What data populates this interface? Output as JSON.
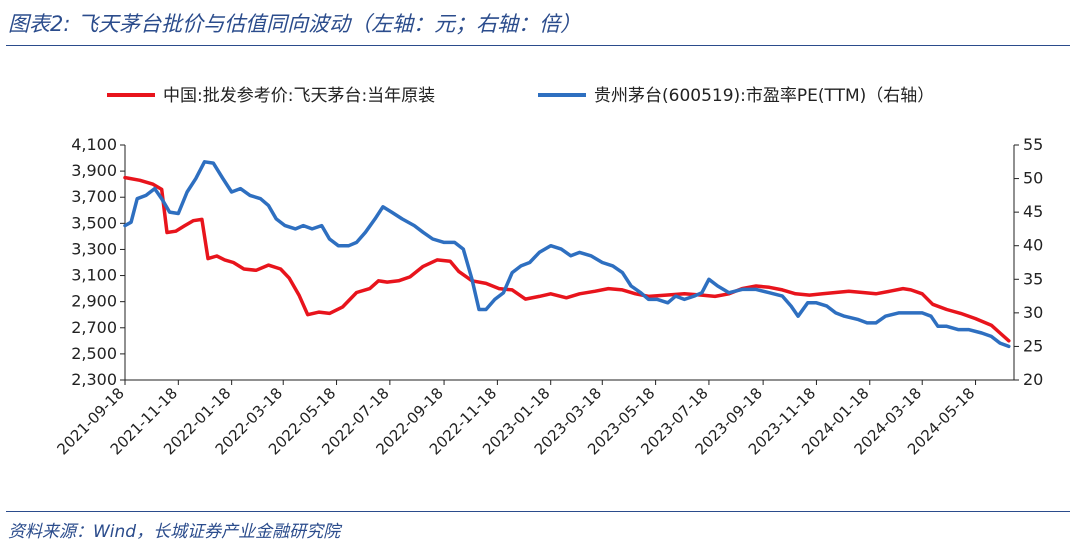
{
  "figure_title": "图表2:  飞天茅台批价与估值同向波动（左轴：元；右轴：倍）",
  "source_note": "资料来源：Wind，长城证券产业金融研究院",
  "colors": {
    "red_series": "#e8141c",
    "blue_series": "#2e6fc0",
    "title": "#2b4c8c",
    "axis": "#222222"
  },
  "chart_data": {
    "type": "line",
    "title": "",
    "legend_placement": "top",
    "grid": false,
    "x_tick_labels": [
      "2021-09-18",
      "2021-11-18",
      "2022-01-18",
      "2022-03-18",
      "2022-05-18",
      "2022-07-18",
      "2022-09-18",
      "2022-11-18",
      "2023-01-18",
      "2023-03-18",
      "2023-05-18",
      "2023-07-18",
      "2023-09-18",
      "2023-11-18",
      "2024-01-18",
      "2024-03-18",
      "2024-05-18"
    ],
    "x_range": [
      "2021-09-18",
      "2024-07-01"
    ],
    "y_left": {
      "range": [
        2300,
        4100
      ],
      "ticks": [
        "2,300",
        "2,500",
        "2,700",
        "2,900",
        "3,100",
        "3,300",
        "3,500",
        "3,700",
        "3,900",
        "4,100"
      ]
    },
    "y_right": {
      "range": [
        20,
        55
      ],
      "ticks": [
        "20",
        "25",
        "30",
        "35",
        "40",
        "45",
        "50",
        "55"
      ]
    },
    "series": [
      {
        "name": "中国:批发参考价:飞天茅台:当年原装",
        "axis": "left",
        "points": [
          [
            "2021-09-18",
            3850
          ],
          [
            "2021-10-05",
            3830
          ],
          [
            "2021-10-20",
            3800
          ],
          [
            "2021-10-30",
            3760
          ],
          [
            "2021-11-05",
            3430
          ],
          [
            "2021-11-15",
            3440
          ],
          [
            "2021-11-25",
            3480
          ],
          [
            "2021-12-05",
            3520
          ],
          [
            "2021-12-15",
            3530
          ],
          [
            "2021-12-22",
            3230
          ],
          [
            "2022-01-01",
            3250
          ],
          [
            "2022-01-10",
            3220
          ],
          [
            "2022-01-20",
            3200
          ],
          [
            "2022-02-01",
            3150
          ],
          [
            "2022-02-15",
            3140
          ],
          [
            "2022-03-01",
            3180
          ],
          [
            "2022-03-15",
            3150
          ],
          [
            "2022-03-25",
            3080
          ],
          [
            "2022-04-05",
            2950
          ],
          [
            "2022-04-15",
            2800
          ],
          [
            "2022-04-28",
            2820
          ],
          [
            "2022-05-10",
            2810
          ],
          [
            "2022-05-25",
            2860
          ],
          [
            "2022-06-10",
            2970
          ],
          [
            "2022-06-25",
            3000
          ],
          [
            "2022-07-05",
            3060
          ],
          [
            "2022-07-15",
            3050
          ],
          [
            "2022-07-28",
            3060
          ],
          [
            "2022-08-10",
            3090
          ],
          [
            "2022-08-25",
            3170
          ],
          [
            "2022-09-10",
            3220
          ],
          [
            "2022-09-25",
            3210
          ],
          [
            "2022-10-05",
            3130
          ],
          [
            "2022-10-20",
            3060
          ],
          [
            "2022-11-05",
            3040
          ],
          [
            "2022-11-20",
            3000
          ],
          [
            "2022-12-05",
            2990
          ],
          [
            "2022-12-20",
            2920
          ],
          [
            "2023-01-05",
            2940
          ],
          [
            "2023-01-18",
            2960
          ],
          [
            "2023-02-05",
            2930
          ],
          [
            "2023-02-20",
            2960
          ],
          [
            "2023-03-10",
            2980
          ],
          [
            "2023-03-25",
            3000
          ],
          [
            "2023-04-10",
            2990
          ],
          [
            "2023-04-25",
            2960
          ],
          [
            "2023-05-10",
            2940
          ],
          [
            "2023-05-30",
            2950
          ],
          [
            "2023-06-20",
            2960
          ],
          [
            "2023-07-10",
            2950
          ],
          [
            "2023-07-25",
            2940
          ],
          [
            "2023-08-10",
            2960
          ],
          [
            "2023-08-25",
            3000
          ],
          [
            "2023-09-10",
            3020
          ],
          [
            "2023-09-25",
            3010
          ],
          [
            "2023-10-10",
            2990
          ],
          [
            "2023-10-25",
            2960
          ],
          [
            "2023-11-10",
            2950
          ],
          [
            "2023-11-25",
            2960
          ],
          [
            "2023-12-10",
            2970
          ],
          [
            "2023-12-25",
            2980
          ],
          [
            "2024-01-10",
            2970
          ],
          [
            "2024-01-25",
            2960
          ],
          [
            "2024-02-10",
            2980
          ],
          [
            "2024-02-25",
            3000
          ],
          [
            "2024-03-05",
            2990
          ],
          [
            "2024-03-18",
            2960
          ],
          [
            "2024-03-30",
            2880
          ],
          [
            "2024-04-15",
            2840
          ],
          [
            "2024-05-01",
            2810
          ],
          [
            "2024-05-18",
            2770
          ],
          [
            "2024-06-05",
            2720
          ],
          [
            "2024-06-15",
            2660
          ],
          [
            "2024-06-25",
            2600
          ]
        ]
      },
      {
        "name": "贵州茅台(600519):市盈率PE(TTM)（右轴）",
        "axis": "right",
        "points": [
          [
            "2021-09-18",
            43
          ],
          [
            "2021-09-25",
            43.5
          ],
          [
            "2021-10-02",
            47
          ],
          [
            "2021-10-12",
            47.5
          ],
          [
            "2021-10-22",
            48.5
          ],
          [
            "2021-10-30",
            47
          ],
          [
            "2021-11-08",
            45
          ],
          [
            "2021-11-18",
            44.8
          ],
          [
            "2021-11-28",
            48
          ],
          [
            "2021-12-08",
            50
          ],
          [
            "2021-12-18",
            52.5
          ],
          [
            "2021-12-28",
            52.3
          ],
          [
            "2022-01-08",
            50
          ],
          [
            "2022-01-18",
            48
          ],
          [
            "2022-01-28",
            48.5
          ],
          [
            "2022-02-08",
            47.5
          ],
          [
            "2022-02-20",
            47
          ],
          [
            "2022-03-01",
            46
          ],
          [
            "2022-03-10",
            44
          ],
          [
            "2022-03-20",
            43
          ],
          [
            "2022-04-01",
            42.5
          ],
          [
            "2022-04-10",
            43
          ],
          [
            "2022-04-20",
            42.5
          ],
          [
            "2022-05-01",
            43
          ],
          [
            "2022-05-10",
            41
          ],
          [
            "2022-05-20",
            40
          ],
          [
            "2022-06-01",
            40
          ],
          [
            "2022-06-10",
            40.5
          ],
          [
            "2022-06-20",
            42
          ],
          [
            "2022-07-01",
            44
          ],
          [
            "2022-07-10",
            45.8
          ],
          [
            "2022-07-20",
            45
          ],
          [
            "2022-08-01",
            44
          ],
          [
            "2022-08-15",
            43
          ],
          [
            "2022-08-25",
            42
          ],
          [
            "2022-09-05",
            41
          ],
          [
            "2022-09-18",
            40.5
          ],
          [
            "2022-09-30",
            40.5
          ],
          [
            "2022-10-10",
            39.5
          ],
          [
            "2022-10-20",
            35
          ],
          [
            "2022-10-28",
            30.5
          ],
          [
            "2022-11-05",
            30.5
          ],
          [
            "2022-11-15",
            32
          ],
          [
            "2022-11-25",
            33
          ],
          [
            "2022-12-05",
            36
          ],
          [
            "2022-12-15",
            37
          ],
          [
            "2022-12-25",
            37.5
          ],
          [
            "2023-01-05",
            39
          ],
          [
            "2023-01-18",
            40
          ],
          [
            "2023-01-30",
            39.5
          ],
          [
            "2023-02-10",
            38.5
          ],
          [
            "2023-02-20",
            39
          ],
          [
            "2023-03-05",
            38.5
          ],
          [
            "2023-03-18",
            37.5
          ],
          [
            "2023-03-30",
            37
          ],
          [
            "2023-04-10",
            36
          ],
          [
            "2023-04-20",
            34
          ],
          [
            "2023-05-01",
            33
          ],
          [
            "2023-05-10",
            32
          ],
          [
            "2023-05-20",
            32
          ],
          [
            "2023-06-01",
            31.5
          ],
          [
            "2023-06-10",
            32.5
          ],
          [
            "2023-06-20",
            32
          ],
          [
            "2023-07-01",
            32.5
          ],
          [
            "2023-07-10",
            33
          ],
          [
            "2023-07-18",
            35
          ],
          [
            "2023-07-28",
            34
          ],
          [
            "2023-08-10",
            33
          ],
          [
            "2023-08-25",
            33.5
          ],
          [
            "2023-09-10",
            33.5
          ],
          [
            "2023-09-25",
            33
          ],
          [
            "2023-10-10",
            32.5
          ],
          [
            "2023-10-20",
            31
          ],
          [
            "2023-10-28",
            29.5
          ],
          [
            "2023-11-08",
            31.5
          ],
          [
            "2023-11-18",
            31.5
          ],
          [
            "2023-11-30",
            31
          ],
          [
            "2023-12-10",
            30
          ],
          [
            "2023-12-20",
            29.5
          ],
          [
            "2024-01-05",
            29
          ],
          [
            "2024-01-15",
            28.5
          ],
          [
            "2024-01-25",
            28.5
          ],
          [
            "2024-02-05",
            29.5
          ],
          [
            "2024-02-20",
            30
          ],
          [
            "2024-03-05",
            30
          ],
          [
            "2024-03-18",
            30
          ],
          [
            "2024-03-28",
            29.5
          ],
          [
            "2024-04-05",
            28
          ],
          [
            "2024-04-15",
            28
          ],
          [
            "2024-04-28",
            27.5
          ],
          [
            "2024-05-10",
            27.5
          ],
          [
            "2024-05-25",
            27
          ],
          [
            "2024-06-05",
            26.5
          ],
          [
            "2024-06-15",
            25.5
          ],
          [
            "2024-06-25",
            25
          ]
        ]
      }
    ]
  }
}
